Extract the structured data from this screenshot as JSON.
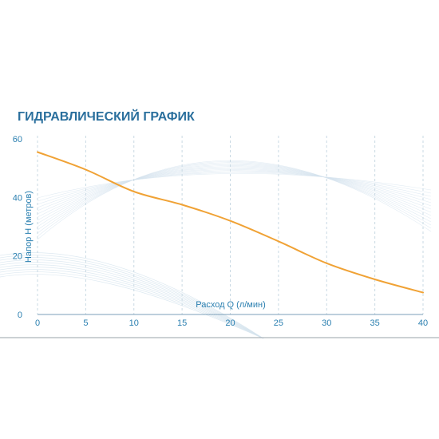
{
  "chart_data": {
    "type": "line",
    "title": "ГИДРАВЛИЧЕСКИЙ ГРАФИК",
    "xlabel": "Расход Q (л/мин)",
    "ylabel": "Напор Н (метров)",
    "xlim": [
      0,
      40
    ],
    "ylim": [
      0,
      60
    ],
    "x_ticks": [
      "0",
      "5",
      "10",
      "15",
      "20",
      "25",
      "30",
      "35",
      "40"
    ],
    "y_ticks": [
      "0",
      "20",
      "40",
      "60"
    ],
    "grid": "vertical dashed",
    "series": [
      {
        "x": [
          0,
          5,
          10,
          15,
          20,
          25,
          30,
          35,
          40
        ],
        "values": [
          55.5,
          49.5,
          42,
          37.5,
          32,
          25,
          17.5,
          12,
          7.5
        ]
      }
    ],
    "colors": {
      "line": "#f0a235",
      "title": "#2a6f9d",
      "ticks": "#2a7fb0",
      "grid": "#c9d9e3",
      "axis": "#7b9fb8",
      "decor": "#d4e3ee"
    }
  }
}
